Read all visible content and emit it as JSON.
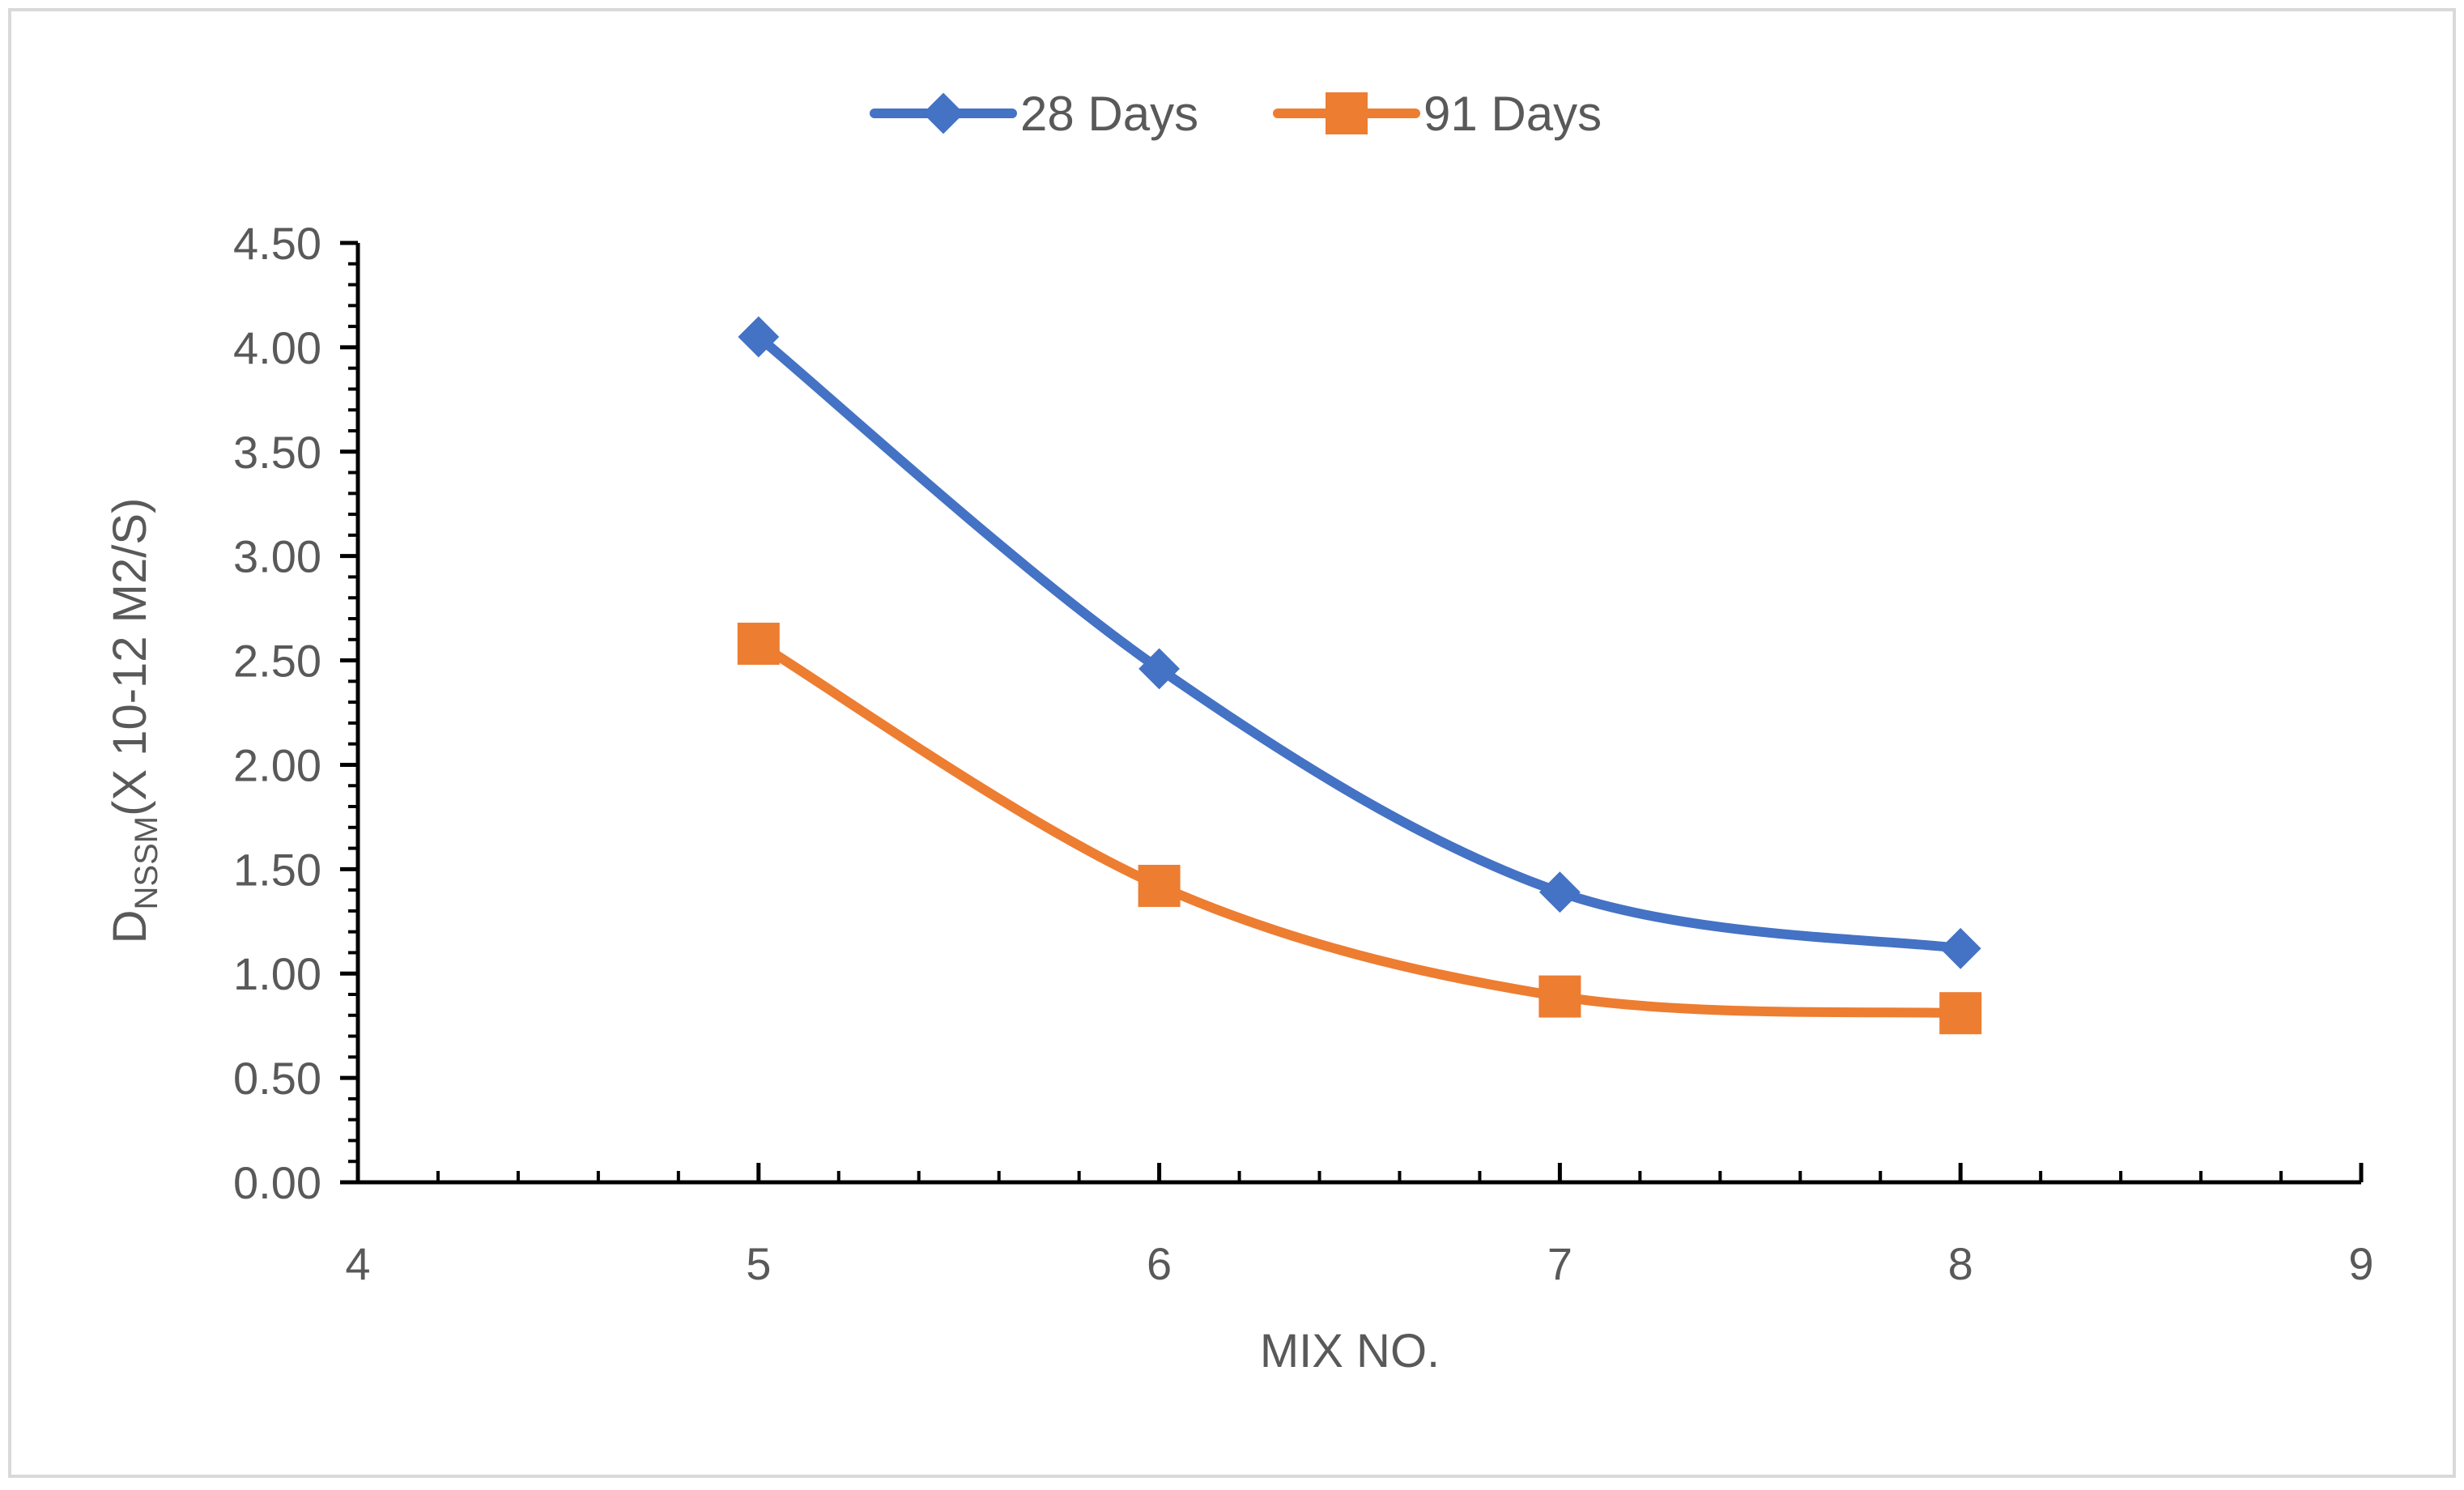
{
  "chart_data": {
    "type": "line",
    "title": "",
    "xlabel": "MIX NO.",
    "ylabel": {
      "main": "D",
      "subscript": "NSSM",
      "rest": "(X 10-12 M2/S)"
    },
    "xlim": [
      4,
      9
    ],
    "ylim": [
      0,
      4.5
    ],
    "x_ticks": [
      4,
      5,
      6,
      7,
      8,
      9
    ],
    "y_ticks": [
      0,
      0.5,
      1.0,
      1.5,
      2.0,
      2.5,
      3.0,
      3.5,
      4.0,
      4.5
    ],
    "y_tick_labels": [
      "0.00",
      "0.50",
      "1.00",
      "1.50",
      "2.00",
      "2.50",
      "3.00",
      "3.50",
      "4.00",
      "4.50"
    ],
    "x_tick_labels": [
      "4",
      "5",
      "6",
      "7",
      "8",
      "9"
    ],
    "grid": false,
    "legend_position": "top",
    "smooth": true,
    "series": [
      {
        "name": "28 Days",
        "color": "#4472C4",
        "marker": "diamond",
        "x": [
          5,
          6,
          7,
          8
        ],
        "values": [
          4.05,
          2.46,
          1.39,
          1.12
        ]
      },
      {
        "name": "91 Days",
        "color": "#ED7D31",
        "marker": "square",
        "x": [
          5,
          6,
          7,
          8
        ],
        "values": [
          2.58,
          1.42,
          0.89,
          0.81
        ]
      }
    ]
  }
}
